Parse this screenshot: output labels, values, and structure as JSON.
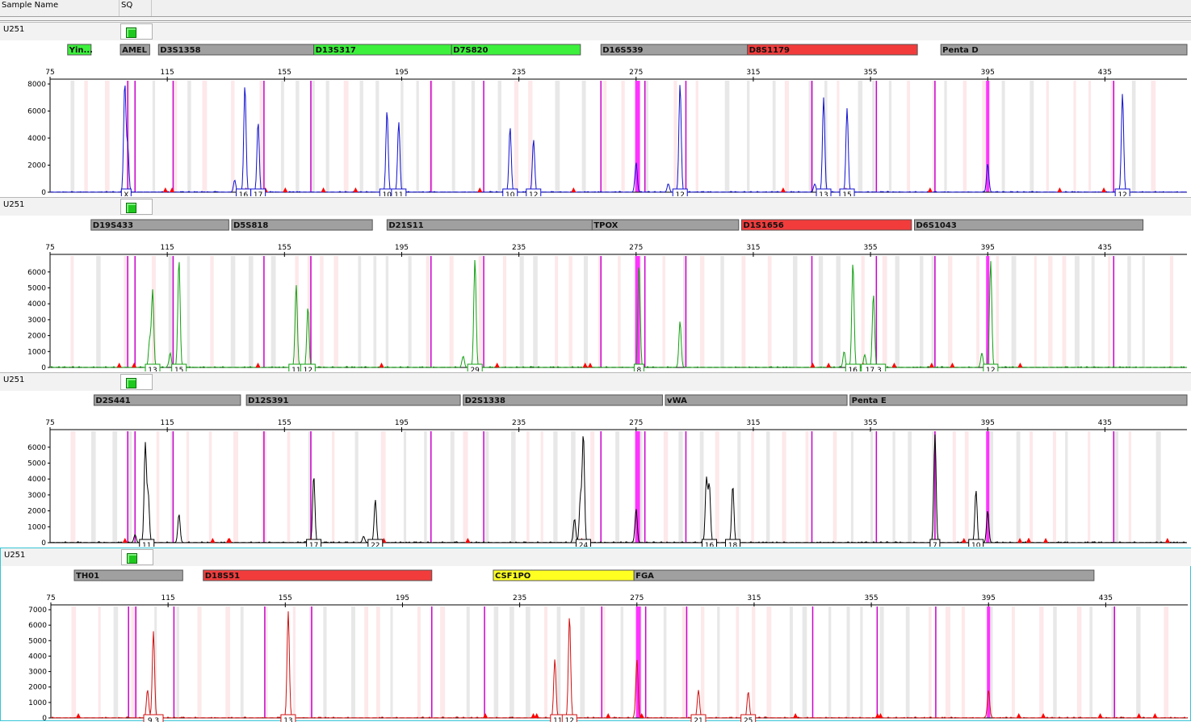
{
  "columns": {
    "sample_name": "Sample Name",
    "sq": "SQ"
  },
  "axis": {
    "size_ticks": [
      75,
      115,
      155,
      195,
      235,
      275,
      315,
      355,
      395,
      435
    ],
    "size_range": [
      75,
      463
    ]
  },
  "colors": {
    "blue": "#1010d0",
    "green": "#10a010",
    "black": "#000000",
    "red": "#d01010",
    "bin_magenta": "#cc00cc",
    "marker_gray": "#a0a0a0",
    "marker_green": "#3cf03c",
    "marker_red": "#f23c3c",
    "marker_yellow": "#ffff22"
  },
  "panels": [
    {
      "sample": "U251",
      "color": "blue",
      "ymax": 8000,
      "y_ticks": [
        0,
        2000,
        4000,
        6000,
        8000
      ],
      "markers": [
        {
          "name": "Yin...",
          "start": 81,
          "end": 89,
          "status": "green"
        },
        {
          "name": "AMEL",
          "start": 99,
          "end": 109,
          "status": "gray"
        },
        {
          "name": "D3S1358",
          "start": 112,
          "end": 165,
          "status": "gray"
        },
        {
          "name": "D13S317",
          "start": 165,
          "end": 212,
          "status": "green"
        },
        {
          "name": "D7S820",
          "start": 212,
          "end": 256,
          "status": "green"
        },
        {
          "name": "D16S539",
          "start": 263,
          "end": 313,
          "status": "gray"
        },
        {
          "name": "D8S1179",
          "start": 313,
          "end": 371,
          "status": "red"
        },
        {
          "name": "Penta D",
          "start": 379,
          "end": 463,
          "status": "gray"
        }
      ],
      "allele_labels": [
        {
          "text": "X",
          "size": 101
        },
        {
          "text": "16",
          "size": 141
        },
        {
          "text": "17",
          "size": 146
        },
        {
          "text": "10",
          "size": 190
        },
        {
          "text": "11",
          "size": 194
        },
        {
          "text": "10",
          "size": 232
        },
        {
          "text": "12",
          "size": 240
        },
        {
          "text": "12",
          "size": 290
        },
        {
          "text": "13",
          "size": 339
        },
        {
          "text": "15",
          "size": 347
        },
        {
          "text": "12",
          "size": 441
        }
      ],
      "peaks": [
        {
          "size": 100.5,
          "height": 8000
        },
        {
          "size": 101.5,
          "height": 3300
        },
        {
          "size": 141.5,
          "height": 7900
        },
        {
          "size": 146,
          "height": 5200
        },
        {
          "size": 138,
          "height": 900
        },
        {
          "size": 190,
          "height": 6000
        },
        {
          "size": 194,
          "height": 5200
        },
        {
          "size": 232,
          "height": 4800
        },
        {
          "size": 240,
          "height": 3900
        },
        {
          "size": 275,
          "height": 2200
        },
        {
          "size": 290,
          "height": 8000
        },
        {
          "size": 286,
          "height": 600
        },
        {
          "size": 339,
          "height": 7000
        },
        {
          "size": 347,
          "height": 6200
        },
        {
          "size": 336,
          "height": 600
        },
        {
          "size": 395,
          "height": 2100
        },
        {
          "size": 441,
          "height": 7300
        }
      ]
    },
    {
      "sample": "U251",
      "color": "green",
      "ymax": 6800,
      "y_ticks": [
        0,
        1000,
        2000,
        3000,
        4000,
        5000,
        6000
      ],
      "markers": [
        {
          "name": "D19S433",
          "start": 89,
          "end": 136,
          "status": "gray"
        },
        {
          "name": "D5S818",
          "start": 137,
          "end": 185,
          "status": "gray"
        },
        {
          "name": "D21S11",
          "start": 190,
          "end": 260,
          "status": "gray"
        },
        {
          "name": "TPOX",
          "start": 260,
          "end": 310,
          "status": "gray"
        },
        {
          "name": "D1S1656",
          "start": 311,
          "end": 369,
          "status": "red"
        },
        {
          "name": "D6S1043",
          "start": 370,
          "end": 448,
          "status": "gray"
        }
      ],
      "allele_labels": [
        {
          "text": "13",
          "size": 110
        },
        {
          "text": "15",
          "size": 119
        },
        {
          "text": "11",
          "size": 159
        },
        {
          "text": "12",
          "size": 163
        },
        {
          "text": "29",
          "size": 220
        },
        {
          "text": "8",
          "size": 276
        },
        {
          "text": "16",
          "size": 349
        },
        {
          "text": "17.3",
          "size": 356
        },
        {
          "text": "12",
          "size": 396
        }
      ],
      "peaks": [
        {
          "size": 110,
          "height": 4800
        },
        {
          "size": 109,
          "height": 1700
        },
        {
          "size": 119,
          "height": 6800
        },
        {
          "size": 116,
          "height": 900
        },
        {
          "size": 159,
          "height": 5200
        },
        {
          "size": 163,
          "height": 3800
        },
        {
          "size": 220,
          "height": 6800
        },
        {
          "size": 216,
          "height": 700
        },
        {
          "size": 276,
          "height": 6500
        },
        {
          "size": 290,
          "height": 2900
        },
        {
          "size": 349,
          "height": 6600
        },
        {
          "size": 346,
          "height": 1000
        },
        {
          "size": 356,
          "height": 4600
        },
        {
          "size": 353,
          "height": 800
        },
        {
          "size": 396,
          "height": 6700
        },
        {
          "size": 393,
          "height": 900
        }
      ]
    },
    {
      "sample": "U251",
      "color": "black",
      "ymax": 6800,
      "y_ticks": [
        0,
        1000,
        2000,
        3000,
        4000,
        5000,
        6000
      ],
      "markers": [
        {
          "name": "D2S441",
          "start": 90,
          "end": 140,
          "status": "gray"
        },
        {
          "name": "D12S391",
          "start": 142,
          "end": 215,
          "status": "gray"
        },
        {
          "name": "D2S1338",
          "start": 216,
          "end": 284,
          "status": "gray"
        },
        {
          "name": "vWA",
          "start": 285,
          "end": 347,
          "status": "gray"
        },
        {
          "name": "Penta E",
          "start": 348,
          "end": 463,
          "status": "gray"
        }
      ],
      "allele_labels": [
        {
          "text": "11",
          "size": 108
        },
        {
          "text": "17",
          "size": 165
        },
        {
          "text": "22",
          "size": 186
        },
        {
          "text": "24",
          "size": 257
        },
        {
          "text": "16",
          "size": 300
        },
        {
          "text": "18",
          "size": 308
        },
        {
          "text": "7",
          "size": 377
        },
        {
          "text": "10",
          "size": 391
        }
      ],
      "peaks": [
        {
          "size": 107.5,
          "height": 6200
        },
        {
          "size": 108.5,
          "height": 3000
        },
        {
          "size": 104,
          "height": 500
        },
        {
          "size": 119,
          "height": 1800
        },
        {
          "size": 165,
          "height": 4200
        },
        {
          "size": 186,
          "height": 2700
        },
        {
          "size": 182,
          "height": 400
        },
        {
          "size": 254,
          "height": 1500
        },
        {
          "size": 257,
          "height": 6800
        },
        {
          "size": 256,
          "height": 2800
        },
        {
          "size": 275,
          "height": 2100
        },
        {
          "size": 299,
          "height": 4000
        },
        {
          "size": 300,
          "height": 3600
        },
        {
          "size": 308,
          "height": 3600
        },
        {
          "size": 377,
          "height": 6800
        },
        {
          "size": 391,
          "height": 3300
        },
        {
          "size": 395,
          "height": 2000
        }
      ]
    },
    {
      "sample": "U251",
      "color": "red",
      "ymax": 7000,
      "y_ticks": [
        0,
        1000,
        2000,
        3000,
        4000,
        5000,
        6000,
        7000
      ],
      "markers": [
        {
          "name": "TH01",
          "start": 83,
          "end": 120,
          "status": "gray"
        },
        {
          "name": "D18S51",
          "start": 127,
          "end": 205,
          "status": "red"
        },
        {
          "name": "CSF1PO",
          "start": 226,
          "end": 274,
          "status": "yellow"
        },
        {
          "name": "FGA",
          "start": 274,
          "end": 431,
          "status": "gray"
        }
      ],
      "allele_labels": [
        {
          "text": "9.3",
          "size": 110
        },
        {
          "text": "13",
          "size": 156
        },
        {
          "text": "11",
          "size": 248
        },
        {
          "text": "12",
          "size": 252
        },
        {
          "text": "21",
          "size": 296
        },
        {
          "text": "25",
          "size": 313
        }
      ],
      "peaks": [
        {
          "size": 110,
          "height": 5600
        },
        {
          "size": 108,
          "height": 1800
        },
        {
          "size": 156,
          "height": 6900
        },
        {
          "size": 247,
          "height": 3800
        },
        {
          "size": 252,
          "height": 6600
        },
        {
          "size": 275,
          "height": 3800
        },
        {
          "size": 296,
          "height": 1800
        },
        {
          "size": 313,
          "height": 1700
        },
        {
          "size": 395,
          "height": 1800
        }
      ]
    }
  ]
}
